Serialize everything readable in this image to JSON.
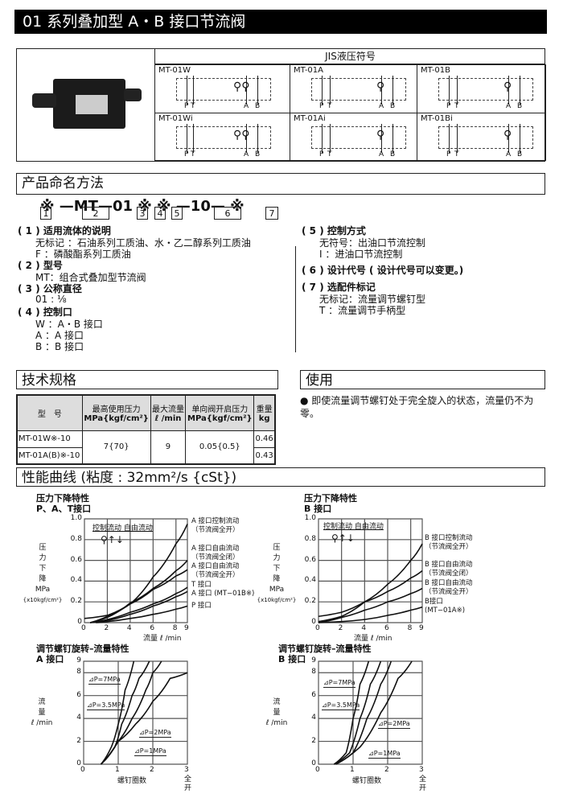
{
  "title": "01 系列叠加型  A・B 接口节流阀",
  "jis": {
    "header": "JIS液压符号",
    "cells": [
      {
        "model": "MT-01W",
        "ports": [
          "P",
          "T",
          "A",
          "B"
        ]
      },
      {
        "model": "MT-01A",
        "ports": [
          "P",
          "T",
          "A",
          "B"
        ]
      },
      {
        "model": "MT-01B",
        "ports": [
          "P",
          "T",
          "A",
          "B"
        ]
      },
      {
        "model": "MT-01Wi",
        "ports": [
          "P",
          "T",
          "A",
          "B"
        ]
      },
      {
        "model": "MT-01Ai",
        "ports": [
          "P",
          "T",
          "A",
          "B"
        ]
      },
      {
        "model": "MT-01Bi",
        "ports": [
          "P",
          "T",
          "A",
          "B"
        ]
      }
    ]
  },
  "naming": {
    "header": "产品命名方法",
    "code": "※ —MT—01 ※ ※ —10— ※",
    "boxes": [
      "1",
      "2",
      "3",
      "4",
      "5",
      "6",
      "7"
    ],
    "left": [
      {
        "head": "( 1 ) 适用流体的说明",
        "lines": [
          "无标记  ：石油系列工质油、水・乙二醇系列工质油",
          "F         ：磷酸酯系列工质油"
        ]
      },
      {
        "head": "( 2 ) 型号",
        "lines": [
          "MT：组合式叠加型节流阀"
        ]
      },
      {
        "head": "( 3 ) 公称直径",
        "lines": [
          "01 : ⅛"
        ]
      },
      {
        "head": "( 4 ) 控制口",
        "lines": [
          "W ：A・B 接口",
          "A  ：A      接口",
          "B  ：B      接口"
        ]
      }
    ],
    "right": [
      {
        "head": "( 5 ) 控制方式",
        "lines": [
          "无符号：出油口节流控制",
          "I          ：进油口节流控制"
        ]
      },
      {
        "head": "( 6 ) 设计代号 ( 设计代号可以变更。)",
        "lines": []
      },
      {
        "head": "( 7 ) 选配件标记",
        "lines": [
          "无标记：流量调节螺钉型",
          "T         ：流量调节手柄型"
        ]
      }
    ]
  },
  "spec": {
    "header": "技术规格",
    "columns": [
      [
        "型　号"
      ],
      [
        "最高使用压力",
        "MPa{kgf/cm²}"
      ],
      [
        "最大流量",
        "ℓ /min"
      ],
      [
        "单向阀开启压力",
        "MPa{kgf/cm²}"
      ],
      [
        "重量",
        "kg"
      ]
    ],
    "rows": [
      [
        "MT-01W※-10",
        "7{70}",
        "9",
        "0.05{0.5}",
        "0.46"
      ],
      [
        "MT-01A(B)※-10",
        "",
        "",
        "",
        "0.43"
      ]
    ]
  },
  "usage": {
    "header": "使用",
    "note": "即使流量调节螺钉处于完全旋入的状态，流量仍不为零。"
  },
  "perf": {
    "header": "性能曲线 (粘度 : 32mm²/s {cSt})"
  },
  "chart_data": [
    {
      "type": "line",
      "title": "压力下降特性",
      "subtitle": "P、A、T接口",
      "xlabel": "流量  ℓ /min",
      "ylabel": [
        "压",
        "力",
        "下",
        "降",
        "MPa",
        "{x10kgf/cm²}"
      ],
      "inset": "控制流动 自由流动",
      "xlim": [
        0,
        9
      ],
      "ylim": [
        0,
        1.0
      ],
      "xticks": [
        "0",
        "2",
        "4",
        "6",
        "8",
        "9"
      ],
      "yticks": [
        "0",
        "0.2",
        "0.4",
        "0.6",
        "0.8",
        "1.0"
      ],
      "grid": true,
      "labels": [
        "A 接口控制流动",
        "（节流阀全开）",
        "A 接口自由流动",
        "（节流阀全闭）",
        "A 接口自由流动",
        "（节流阀全开）",
        "T  接口",
        "A  接口 (MT−01B※)",
        "P  接口"
      ],
      "series": [
        {
          "x": [
            0,
            2,
            4,
            6,
            8,
            9
          ],
          "y": [
            0.04,
            0.07,
            0.18,
            0.44,
            0.76,
            0.95
          ]
        },
        {
          "x": [
            0.5,
            2,
            4,
            6,
            8,
            9
          ],
          "y": [
            0,
            0.05,
            0.19,
            0.33,
            0.5,
            0.6
          ]
        },
        {
          "x": [
            0.5,
            2,
            4,
            6,
            8,
            9
          ],
          "y": [
            0,
            0.06,
            0.18,
            0.32,
            0.45,
            0.51
          ]
        },
        {
          "x": [
            0.5,
            2,
            4,
            6,
            8,
            9
          ],
          "y": [
            0,
            0.03,
            0.1,
            0.18,
            0.28,
            0.34
          ]
        },
        {
          "x": [
            0.5,
            2,
            4,
            6,
            8,
            9
          ],
          "y": [
            0,
            0.02,
            0.08,
            0.16,
            0.25,
            0.3
          ]
        },
        {
          "x": [
            1,
            2,
            4,
            6,
            8,
            9
          ],
          "y": [
            0,
            0.01,
            0.04,
            0.08,
            0.13,
            0.16
          ]
        }
      ]
    },
    {
      "type": "line",
      "title": "压力下降特性",
      "subtitle": "B 接口",
      "xlabel": "流量  ℓ /min",
      "ylabel": [
        "压",
        "力",
        "下",
        "降",
        "MPa",
        "{x10kgf/cm²}"
      ],
      "inset": "控制流动 自由流动",
      "xlim": [
        0,
        9
      ],
      "ylim": [
        0,
        1.0
      ],
      "xticks": [
        "0",
        "2",
        "4",
        "6",
        "8",
        "9"
      ],
      "yticks": [
        "0",
        "0.2",
        "0.4",
        "0.6",
        "0.8",
        "1.0"
      ],
      "grid": true,
      "labels": [
        "B 接口控制流动",
        "（节流阀全开）",
        "B 接口自由流动",
        "（节流阀全闭）",
        "B 接口自由流动",
        "（节流阀全开）",
        "B接口",
        "(MT−01A※)"
      ],
      "series": [
        {
          "x": [
            0,
            2,
            4,
            6,
            8,
            9
          ],
          "y": [
            0.01,
            0.06,
            0.2,
            0.37,
            0.6,
            0.76
          ]
        },
        {
          "x": [
            0,
            2,
            4,
            6,
            8,
            9
          ],
          "y": [
            0.06,
            0.1,
            0.2,
            0.3,
            0.43,
            0.5
          ]
        },
        {
          "x": [
            0,
            2,
            4,
            6,
            8,
            9
          ],
          "y": [
            0,
            0.05,
            0.12,
            0.2,
            0.28,
            0.33
          ]
        },
        {
          "x": [
            0,
            2,
            4,
            6,
            8,
            9
          ],
          "y": [
            0,
            0.01,
            0.03,
            0.07,
            0.12,
            0.15
          ]
        }
      ]
    },
    {
      "type": "line",
      "title": "调节螺钉旋转–流量特性",
      "subtitle": "A 接口",
      "xlabel": "螺钉圈数",
      "xend": [
        "全",
        "开"
      ],
      "ylabel": [
        "流",
        "量",
        "ℓ /min"
      ],
      "xlim": [
        0,
        3
      ],
      "ylim": [
        0,
        9
      ],
      "xticks": [
        "0",
        "1",
        "2",
        "3"
      ],
      "yticks": [
        "0",
        "2",
        "4",
        "6",
        "8",
        "9"
      ],
      "grid": true,
      "labels": [
        "⊿P=7MPa",
        "⊿P=3.5MPa",
        "⊿P=2MPa",
        "⊿P=1MPa"
      ],
      "series": [
        {
          "name": "⊿P=7MPa",
          "x": [
            0.5,
            0.8,
            1,
            1.2,
            1.45
          ],
          "y": [
            0,
            1.5,
            3.5,
            6.5,
            9
          ]
        },
        {
          "name": "⊿P=3.5MPa",
          "x": [
            0.5,
            0.9,
            1.1,
            1.4,
            1.6,
            1.9
          ],
          "y": [
            0,
            1.5,
            3.5,
            6,
            7.5,
            9
          ]
        },
        {
          "name": "⊿P=2MPa",
          "x": [
            0.5,
            1,
            1.4,
            1.8,
            2,
            2.25
          ],
          "y": [
            0,
            2,
            4,
            6.5,
            8,
            9
          ]
        },
        {
          "name": "⊿P=1MPa",
          "x": [
            0.5,
            1,
            1.5,
            2,
            2.5,
            3
          ],
          "y": [
            0,
            2,
            3.5,
            5.5,
            7.5,
            8
          ]
        }
      ]
    },
    {
      "type": "line",
      "title": "调节螺钉旋转–流量特性",
      "subtitle": "B 接口",
      "xlabel": "螺钉圈数",
      "xend": [
        "全",
        "开"
      ],
      "ylabel": [
        "流",
        "量",
        "ℓ /min"
      ],
      "xlim": [
        0,
        3
      ],
      "ylim": [
        0,
        9
      ],
      "xticks": [
        "0",
        "1",
        "2",
        "3"
      ],
      "yticks": [
        "0",
        "2",
        "4",
        "6",
        "8",
        "9"
      ],
      "grid": true,
      "labels": [
        "⊿P=7MPa",
        "⊿P=3.5MPa",
        "⊿P=2MPa",
        "⊿P=1MPa"
      ],
      "series": [
        {
          "name": "⊿P=7MPa",
          "x": [
            0.45,
            0.8,
            1,
            1.2,
            1.45
          ],
          "y": [
            0,
            1,
            4,
            7,
            9
          ]
        },
        {
          "name": "⊿P=3.5MPa",
          "x": [
            0.45,
            0.9,
            1.2,
            1.5,
            1.8
          ],
          "y": [
            0,
            1,
            4,
            7,
            9
          ]
        },
        {
          "name": "⊿P=2MPa",
          "x": [
            0.5,
            1,
            1.4,
            1.8,
            2.1
          ],
          "y": [
            0,
            1,
            4,
            7,
            9
          ]
        },
        {
          "name": "⊿P=1MPa",
          "x": [
            0.5,
            1.2,
            1.8,
            2.3,
            2.7
          ],
          "y": [
            0,
            1.5,
            4.5,
            7.5,
            9
          ]
        }
      ]
    }
  ]
}
